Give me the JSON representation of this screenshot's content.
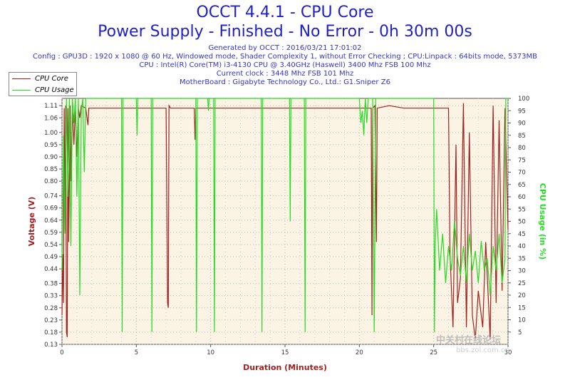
{
  "header": {
    "title": "OCCT 4.4.1 - CPU Core",
    "subtitle": "Power Supply - Finished - No Error - 0h 30m 00s",
    "generated": "Generated by OCCT : 2016/03/21 17:01:02",
    "config": "Config : GPU3D : 1920 x 1080 @ 60 Hz, Windowed mode, Shader Complexity 1, without Error Checking ; CPU:Linpack : 64bits mode, 5373MB",
    "cpu": "CPU : Intel(R) Core(TM) i3-4130 CPU @ 3.40GHz (Haswell) 3400 Mhz FSB 100 Mhz",
    "clock": "Current clock : 3448 Mhz FSB 101 Mhz",
    "motherboard": "MotherBoard : Gigabyte Technology Co., Ltd.: G1.Sniper Z6"
  },
  "watermark": {
    "text": "中关村在线论坛",
    "url": "bbs.zol.com.cn"
  },
  "colors": {
    "voltage": "#a31f1f",
    "usage": "#22dd22",
    "plot_bg": "#fbf4e4",
    "text": "#1f1fc8"
  },
  "chart_data": {
    "type": "line",
    "xlabel": "Duration (Minutes)",
    "ylabel": "Voltage (V)",
    "y2label": "CPU Usage (in %)",
    "xlim": [
      0,
      30
    ],
    "ylim": [
      0.13,
      1.14
    ],
    "y2lim": [
      0,
      100
    ],
    "x_ticks": [
      "0",
      "5",
      "10",
      "15",
      "20",
      "25",
      "30"
    ],
    "y_ticks": [
      "0.13",
      "0.18",
      "0.23",
      "0.28",
      "0.33",
      "0.38",
      "0.44",
      "0.49",
      "0.54",
      "0.59",
      "0.64",
      "0.69",
      "0.74",
      "0.80",
      "0.85",
      "0.90",
      "0.95",
      "1.00",
      "1.06",
      "1.11"
    ],
    "y2_ticks": [
      "5",
      "10",
      "15",
      "20",
      "25",
      "30",
      "35",
      "40",
      "45",
      "50",
      "55",
      "60",
      "65",
      "70",
      "75",
      "80",
      "85",
      "90",
      "95",
      "100"
    ],
    "grid": true,
    "legend": [
      "CPU Core",
      "CPU Usage"
    ],
    "series": [
      {
        "name": "CPU Core",
        "axis": "left",
        "points": [
          [
            0,
            0.25
          ],
          [
            0.05,
            0.5
          ],
          [
            0.1,
            0.3
          ],
          [
            0.15,
            1.1
          ],
          [
            0.2,
            0.6
          ],
          [
            0.25,
            1.11
          ],
          [
            0.3,
            0.18
          ],
          [
            0.35,
            0.16
          ],
          [
            0.4,
            1.1
          ],
          [
            0.45,
            0.55
          ],
          [
            0.55,
            1.11
          ],
          [
            0.6,
            0.8
          ],
          [
            0.7,
            1.1
          ],
          [
            0.8,
            0.95
          ],
          [
            0.9,
            1.1
          ],
          [
            1.0,
            0.9
          ],
          [
            1.1,
            1.1
          ],
          [
            1.2,
            1.06
          ],
          [
            1.3,
            1.11
          ],
          [
            1.6,
            1.1
          ],
          [
            1.7,
            1.05
          ],
          [
            1.75,
            1.03
          ],
          [
            1.8,
            1.1
          ],
          [
            3.0,
            1.1
          ],
          [
            7.0,
            1.1
          ],
          [
            7.1,
            0.3
          ],
          [
            7.15,
            0.28
          ],
          [
            7.2,
            1.11
          ],
          [
            7.3,
            1.1
          ],
          [
            8.9,
            1.1
          ],
          [
            8.95,
            0.97
          ],
          [
            9.0,
            1.1
          ],
          [
            20.8,
            1.1
          ],
          [
            20.85,
            0.25
          ],
          [
            20.9,
            1.1
          ],
          [
            21.05,
            1.11
          ],
          [
            21.1,
            0.8
          ],
          [
            21.15,
            0.55
          ],
          [
            21.2,
            1.1
          ],
          [
            22.0,
            1.11
          ],
          [
            23.0,
            1.1
          ],
          [
            26.0,
            1.1
          ],
          [
            26.1,
            0.5
          ],
          [
            26.3,
            0.2
          ],
          [
            26.5,
            0.95
          ],
          [
            26.6,
            0.3
          ],
          [
            26.8,
            0.4
          ],
          [
            27.0,
            1.12
          ],
          [
            27.2,
            0.2
          ],
          [
            27.4,
            1.0
          ],
          [
            27.6,
            0.25
          ],
          [
            27.8,
            0.15
          ],
          [
            28.0,
            0.35
          ],
          [
            28.3,
            0.2
          ],
          [
            28.5,
            0.55
          ],
          [
            28.8,
            0.15
          ],
          [
            29.0,
            1.11
          ],
          [
            29.2,
            0.3
          ],
          [
            29.4,
            1.05
          ],
          [
            29.6,
            0.35
          ],
          [
            29.8,
            1.1
          ],
          [
            30,
            0.6
          ]
        ]
      },
      {
        "name": "CPU Usage",
        "axis": "right",
        "points": [
          [
            0,
            30
          ],
          [
            0.1,
            85
          ],
          [
            0.2,
            45
          ],
          [
            0.3,
            100
          ],
          [
            0.4,
            60
          ],
          [
            0.5,
            100
          ],
          [
            0.6,
            40
          ],
          [
            0.7,
            100
          ],
          [
            0.8,
            90
          ],
          [
            0.9,
            100
          ],
          [
            1.0,
            60
          ],
          [
            1.1,
            100
          ],
          [
            1.2,
            20
          ],
          [
            1.3,
            95
          ],
          [
            1.4,
            100
          ],
          [
            1.5,
            70
          ],
          [
            1.6,
            100
          ],
          [
            2.0,
            100
          ],
          [
            4.0,
            100
          ],
          [
            4.05,
            5
          ],
          [
            4.1,
            100
          ],
          [
            5.0,
            100
          ],
          [
            5.05,
            85
          ],
          [
            5.1,
            100
          ],
          [
            6.0,
            100
          ],
          [
            6.05,
            5
          ],
          [
            6.1,
            100
          ],
          [
            9.0,
            100
          ],
          [
            9.05,
            5
          ],
          [
            9.1,
            100
          ],
          [
            9.8,
            100
          ],
          [
            9.85,
            95
          ],
          [
            9.9,
            100
          ],
          [
            10.2,
            100
          ],
          [
            10.25,
            5
          ],
          [
            10.3,
            100
          ],
          [
            13.4,
            100
          ],
          [
            13.45,
            5
          ],
          [
            13.5,
            100
          ],
          [
            15.3,
            100
          ],
          [
            15.35,
            50
          ],
          [
            15.4,
            100
          ],
          [
            16.3,
            100
          ],
          [
            16.35,
            5
          ],
          [
            16.4,
            100
          ],
          [
            20.0,
            100
          ],
          [
            20.1,
            90
          ],
          [
            20.2,
            95
          ],
          [
            20.3,
            85
          ],
          [
            20.4,
            100
          ],
          [
            20.5,
            90
          ],
          [
            20.6,
            100
          ],
          [
            20.9,
            100
          ],
          [
            21.0,
            5
          ],
          [
            21.1,
            100
          ],
          [
            25.0,
            100
          ],
          [
            25.05,
            5
          ],
          [
            25.1,
            40
          ],
          [
            25.2,
            55
          ],
          [
            25.4,
            30
          ],
          [
            25.6,
            45
          ],
          [
            25.8,
            25
          ],
          [
            26.0,
            40
          ],
          [
            26.2,
            30
          ],
          [
            26.4,
            50
          ],
          [
            26.6,
            35
          ],
          [
            26.8,
            28
          ],
          [
            27.0,
            40
          ],
          [
            27.2,
            25
          ],
          [
            27.4,
            45
          ],
          [
            27.6,
            30
          ],
          [
            27.8,
            38
          ],
          [
            28.0,
            25
          ],
          [
            28.2,
            42
          ],
          [
            28.4,
            30
          ],
          [
            28.6,
            35
          ],
          [
            28.8,
            20
          ],
          [
            29.0,
            40
          ],
          [
            29.2,
            30
          ],
          [
            29.4,
            45
          ],
          [
            29.6,
            25
          ],
          [
            29.8,
            35
          ],
          [
            29.85,
            100
          ],
          [
            30,
            100
          ]
        ]
      }
    ]
  }
}
